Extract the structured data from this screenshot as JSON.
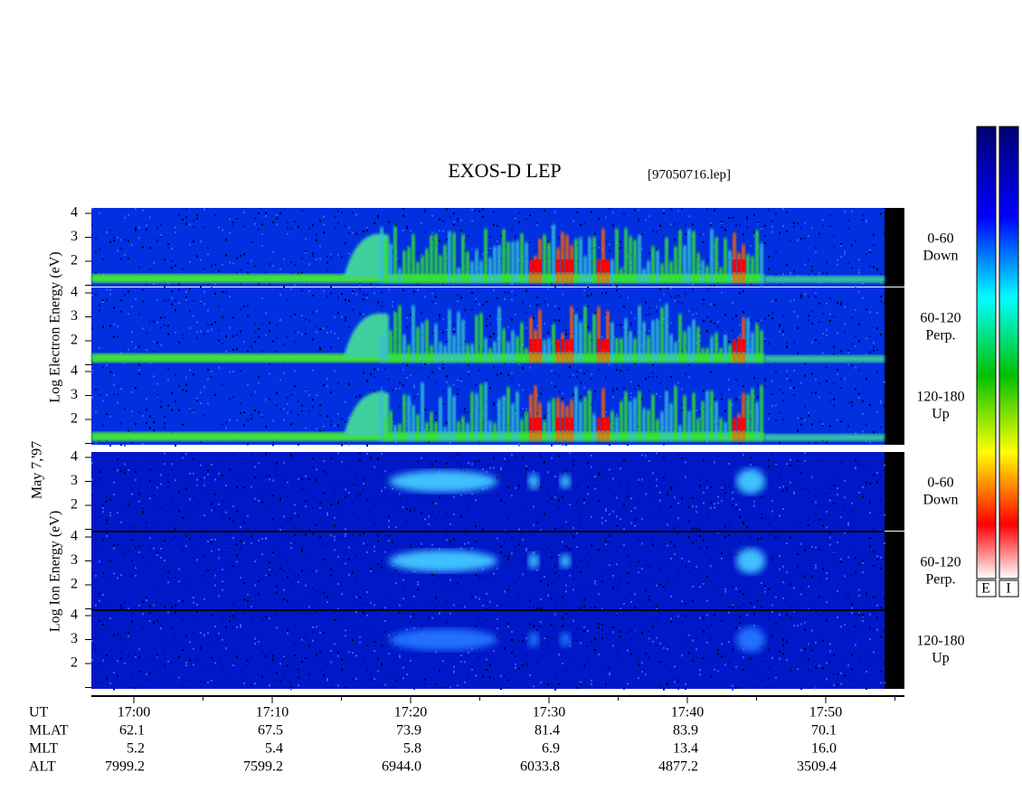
{
  "title": "EXOS-D LEP",
  "file": "[97050716.lep]",
  "date_label": "May  7,'97",
  "electron": {
    "axis_label": "Log   Electron   Energy (eV)",
    "panels": [
      {
        "range": "0-60",
        "direction": "Down"
      },
      {
        "range": "60-120",
        "direction": "Perp."
      },
      {
        "range": "120-180",
        "direction": "Up"
      }
    ]
  },
  "ion": {
    "axis_label": "Log   Ion   Energy (eV)",
    "panels": [
      {
        "range": "0-60",
        "direction": "Down"
      },
      {
        "range": "60-120",
        "direction": "Perp."
      },
      {
        "range": "120-180",
        "direction": "Up"
      }
    ]
  },
  "yticks": [
    2,
    3,
    4
  ],
  "rows": [
    {
      "label": "UT",
      "values": [
        "17:00",
        "17:10",
        "17:20",
        "17:30",
        "17:40",
        "17:50"
      ]
    },
    {
      "label": "MLAT",
      "values": [
        "62.1",
        "67.5",
        "73.9",
        "81.4",
        "83.9",
        "70.1"
      ]
    },
    {
      "label": "MLT",
      "values": [
        "5.2",
        "5.4",
        "5.8",
        "6.9",
        "13.4",
        "16.0"
      ]
    },
    {
      "label": "ALT",
      "values": [
        "7999.2",
        "7599.2",
        "6944.0",
        "6033.8",
        "4877.2",
        "3509.4"
      ]
    }
  ],
  "colorbar": [
    "E",
    "I"
  ]
}
